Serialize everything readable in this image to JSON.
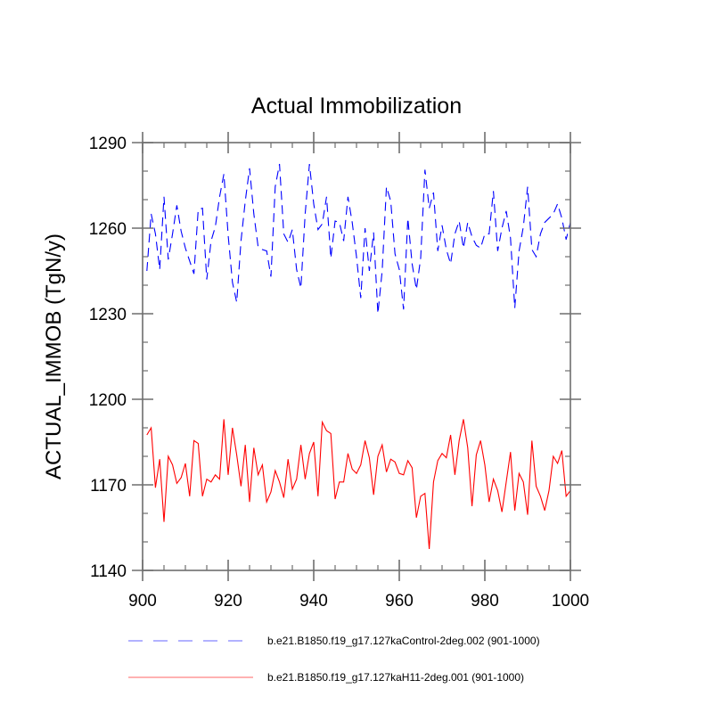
{
  "chart_data": {
    "type": "line",
    "title": "Actual Immobilization",
    "xlabel": "",
    "ylabel": "ACTUAL_IMMOB  (TgN/y)",
    "xlim": [
      900,
      1000
    ],
    "ylim": [
      1140,
      1290
    ],
    "xticks": [
      900,
      920,
      940,
      960,
      980,
      1000
    ],
    "xtick_labels": [
      "900",
      "920",
      "940",
      "960",
      "980",
      "1000"
    ],
    "yticks": [
      1140,
      1170,
      1200,
      1230,
      1260,
      1290
    ],
    "ytick_labels": [
      "1140",
      "1170",
      "1200",
      "1230",
      "1260",
      "1290"
    ],
    "grid": false,
    "legend_position": "bottom",
    "x_start": 901,
    "x_step": 1,
    "series": [
      {
        "name": "b.e21.B1850.f19_g17.127kaControl-2deg.002 (901-1000)",
        "color": "#0000ff",
        "dash": "dashed",
        "values": [
          1245,
          1265,
          1258,
          1245.5,
          1271,
          1249,
          1258,
          1268,
          1259,
          1253,
          1248.5,
          1244,
          1266.5,
          1267,
          1242,
          1255.5,
          1260.5,
          1271,
          1279,
          1257.5,
          1241,
          1234,
          1255.5,
          1269.5,
          1281,
          1265,
          1253.5,
          1252.5,
          1252,
          1243,
          1274.5,
          1282.5,
          1258,
          1255,
          1259.5,
          1245.5,
          1239,
          1265,
          1282.5,
          1268.5,
          1259.5,
          1261.5,
          1271,
          1249.5,
          1262.5,
          1262,
          1255.5,
          1271,
          1262,
          1250,
          1235.5,
          1260,
          1245,
          1258.5,
          1230,
          1245,
          1274.5,
          1269.5,
          1251,
          1245.5,
          1231.5,
          1263.5,
          1247.5,
          1238.5,
          1249.5,
          1280.5,
          1267,
          1272.5,
          1252,
          1261,
          1252.5,
          1247.5,
          1258,
          1262.5,
          1253,
          1262,
          1257,
          1254,
          1253,
          1258,
          1258,
          1273,
          1252,
          1260,
          1266,
          1256.5,
          1232,
          1252,
          1260.5,
          1274.5,
          1252.5,
          1250,
          1258,
          1262,
          1263.5,
          1265,
          1268.5,
          1263.5,
          1256,
          1262
        ]
      },
      {
        "name": "b.e21.B1850.f19_g17.127kaH11-2deg.001 (901-1000)",
        "color": "#ff0000",
        "dash": "solid",
        "values": [
          1187.5,
          1190,
          1169,
          1179,
          1157,
          1180,
          1177,
          1170.5,
          1172.5,
          1177.5,
          1166,
          1185.5,
          1184.5,
          1166,
          1172,
          1171,
          1173.5,
          1172,
          1193,
          1173.5,
          1190,
          1180.5,
          1169.5,
          1184,
          1164,
          1183,
          1173.5,
          1177,
          1164,
          1167.5,
          1175,
          1171,
          1165.5,
          1179,
          1168.5,
          1172,
          1184,
          1172,
          1181,
          1185,
          1166,
          1192,
          1189,
          1188,
          1165,
          1171,
          1171,
          1181,
          1175.5,
          1174,
          1177,
          1185.5,
          1179.5,
          1166.5,
          1180,
          1184,
          1174.5,
          1179,
          1178,
          1174,
          1173.5,
          1178.5,
          1176,
          1158.5,
          1166,
          1167,
          1147.5,
          1171,
          1178.5,
          1181,
          1179.5,
          1187.5,
          1173.5,
          1185.5,
          1193,
          1183,
          1162.5,
          1180.5,
          1185.5,
          1177,
          1164,
          1172,
          1168,
          1160.5,
          1171,
          1181.5,
          1161,
          1174,
          1171,
          1159.5,
          1185.5,
          1169.5,
          1166,
          1161,
          1168,
          1180,
          1177.5,
          1182,
          1166,
          1168
        ]
      }
    ]
  }
}
